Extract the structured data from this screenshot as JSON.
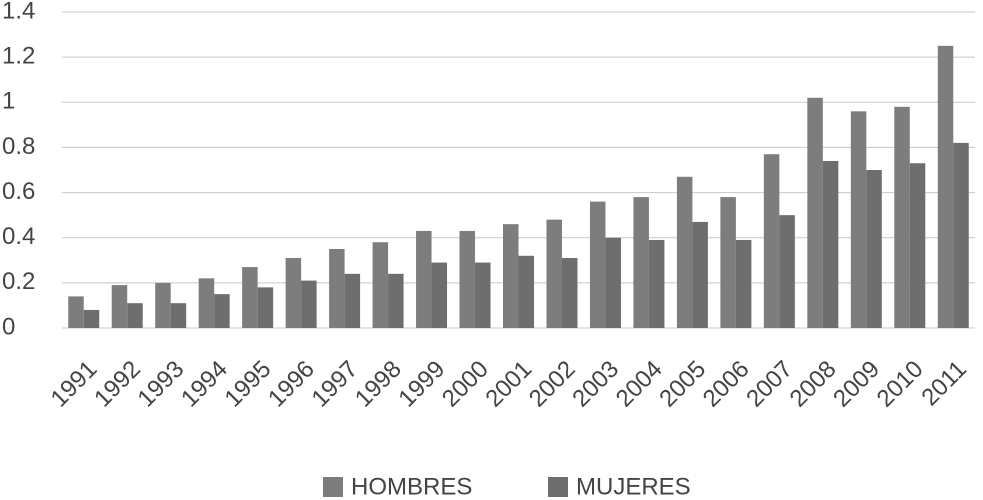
{
  "chart_data": {
    "type": "bar",
    "categories": [
      "1991",
      "1992",
      "1993",
      "1994",
      "1995",
      "1996",
      "1997",
      "1998",
      "1999",
      "2000",
      "2001",
      "2002",
      "2003",
      "2004",
      "2005",
      "2006",
      "2007",
      "2008",
      "2009",
      "2010",
      "2011"
    ],
    "series": [
      {
        "name": "HOMBRES",
        "color": "#7d7d7d",
        "values": [
          0.14,
          0.19,
          0.2,
          0.22,
          0.27,
          0.31,
          0.35,
          0.38,
          0.43,
          0.43,
          0.46,
          0.48,
          0.56,
          0.58,
          0.67,
          0.58,
          0.77,
          1.02,
          0.96,
          0.98,
          1.25
        ]
      },
      {
        "name": "MUJERES",
        "color": "#6e6e6e",
        "values": [
          0.08,
          0.11,
          0.11,
          0.15,
          0.18,
          0.21,
          0.24,
          0.24,
          0.29,
          0.29,
          0.32,
          0.31,
          0.4,
          0.39,
          0.47,
          0.39,
          0.5,
          0.74,
          0.7,
          0.73,
          0.82
        ]
      }
    ],
    "ylim": [
      0,
      1.4
    ],
    "yticks": [
      0,
      0.2,
      0.4,
      0.6,
      0.8,
      1,
      1.2,
      1.4
    ],
    "grid": true,
    "legend": "bottom"
  }
}
